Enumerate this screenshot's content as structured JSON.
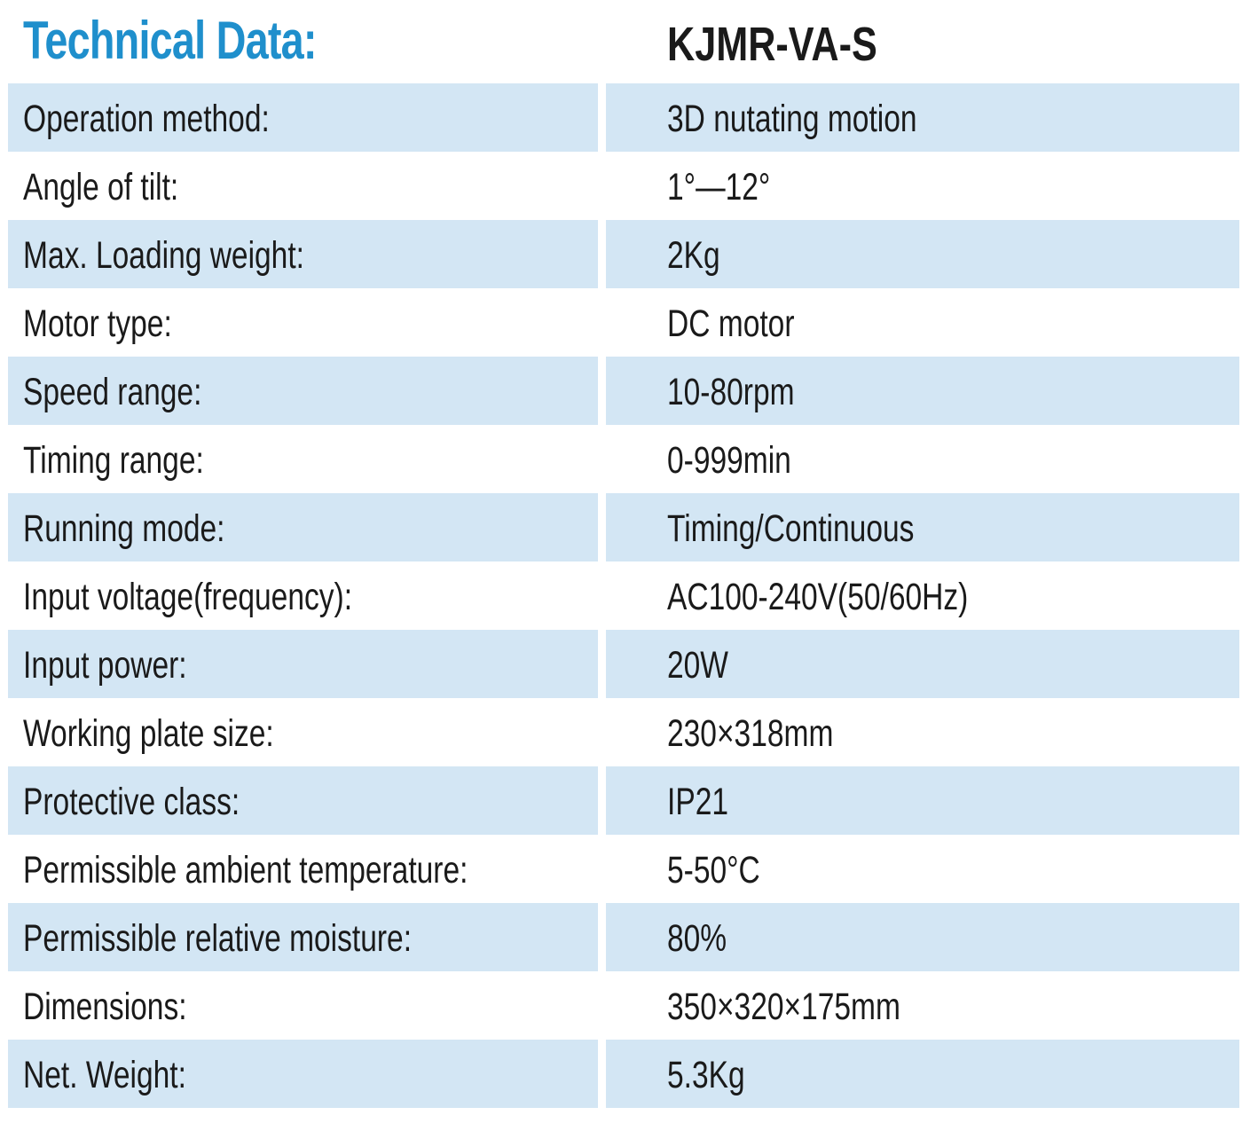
{
  "header": {
    "title": "Technical Data:",
    "model": "KJMR-VA-S"
  },
  "colors": {
    "title": "#1f8fcc",
    "row_shade": "#d3e6f4",
    "text": "#1a1a1a"
  },
  "rows": [
    {
      "label": "Operation method:",
      "value": "3D nutating motion"
    },
    {
      "label": "Angle of tilt:",
      "value": "1°—12°"
    },
    {
      "label": "Max. Loading weight:",
      "value": "2Kg"
    },
    {
      "label": "Motor type:",
      "value": "DC motor"
    },
    {
      "label": "Speed range:",
      "value": "10-80rpm"
    },
    {
      "label": "Timing range:",
      "value": "0-999min"
    },
    {
      "label": "Running mode:",
      "value": "Timing/Continuous"
    },
    {
      "label": "Input voltage(frequency):",
      "value": "AC100-240V(50/60Hz)"
    },
    {
      "label": "Input power:",
      "value": "20W"
    },
    {
      "label": "Working plate size:",
      "value": "230×318mm"
    },
    {
      "label": "Protective class:",
      "value": "IP21"
    },
    {
      "label": "Permissible ambient temperature:",
      "value": "5-50°C"
    },
    {
      "label": "Permissible relative moisture:",
      "value": "80%"
    },
    {
      "label": "Dimensions:",
      "value": "350×320×175mm"
    },
    {
      "label": "Net. Weight:",
      "value": "5.3Kg"
    }
  ]
}
